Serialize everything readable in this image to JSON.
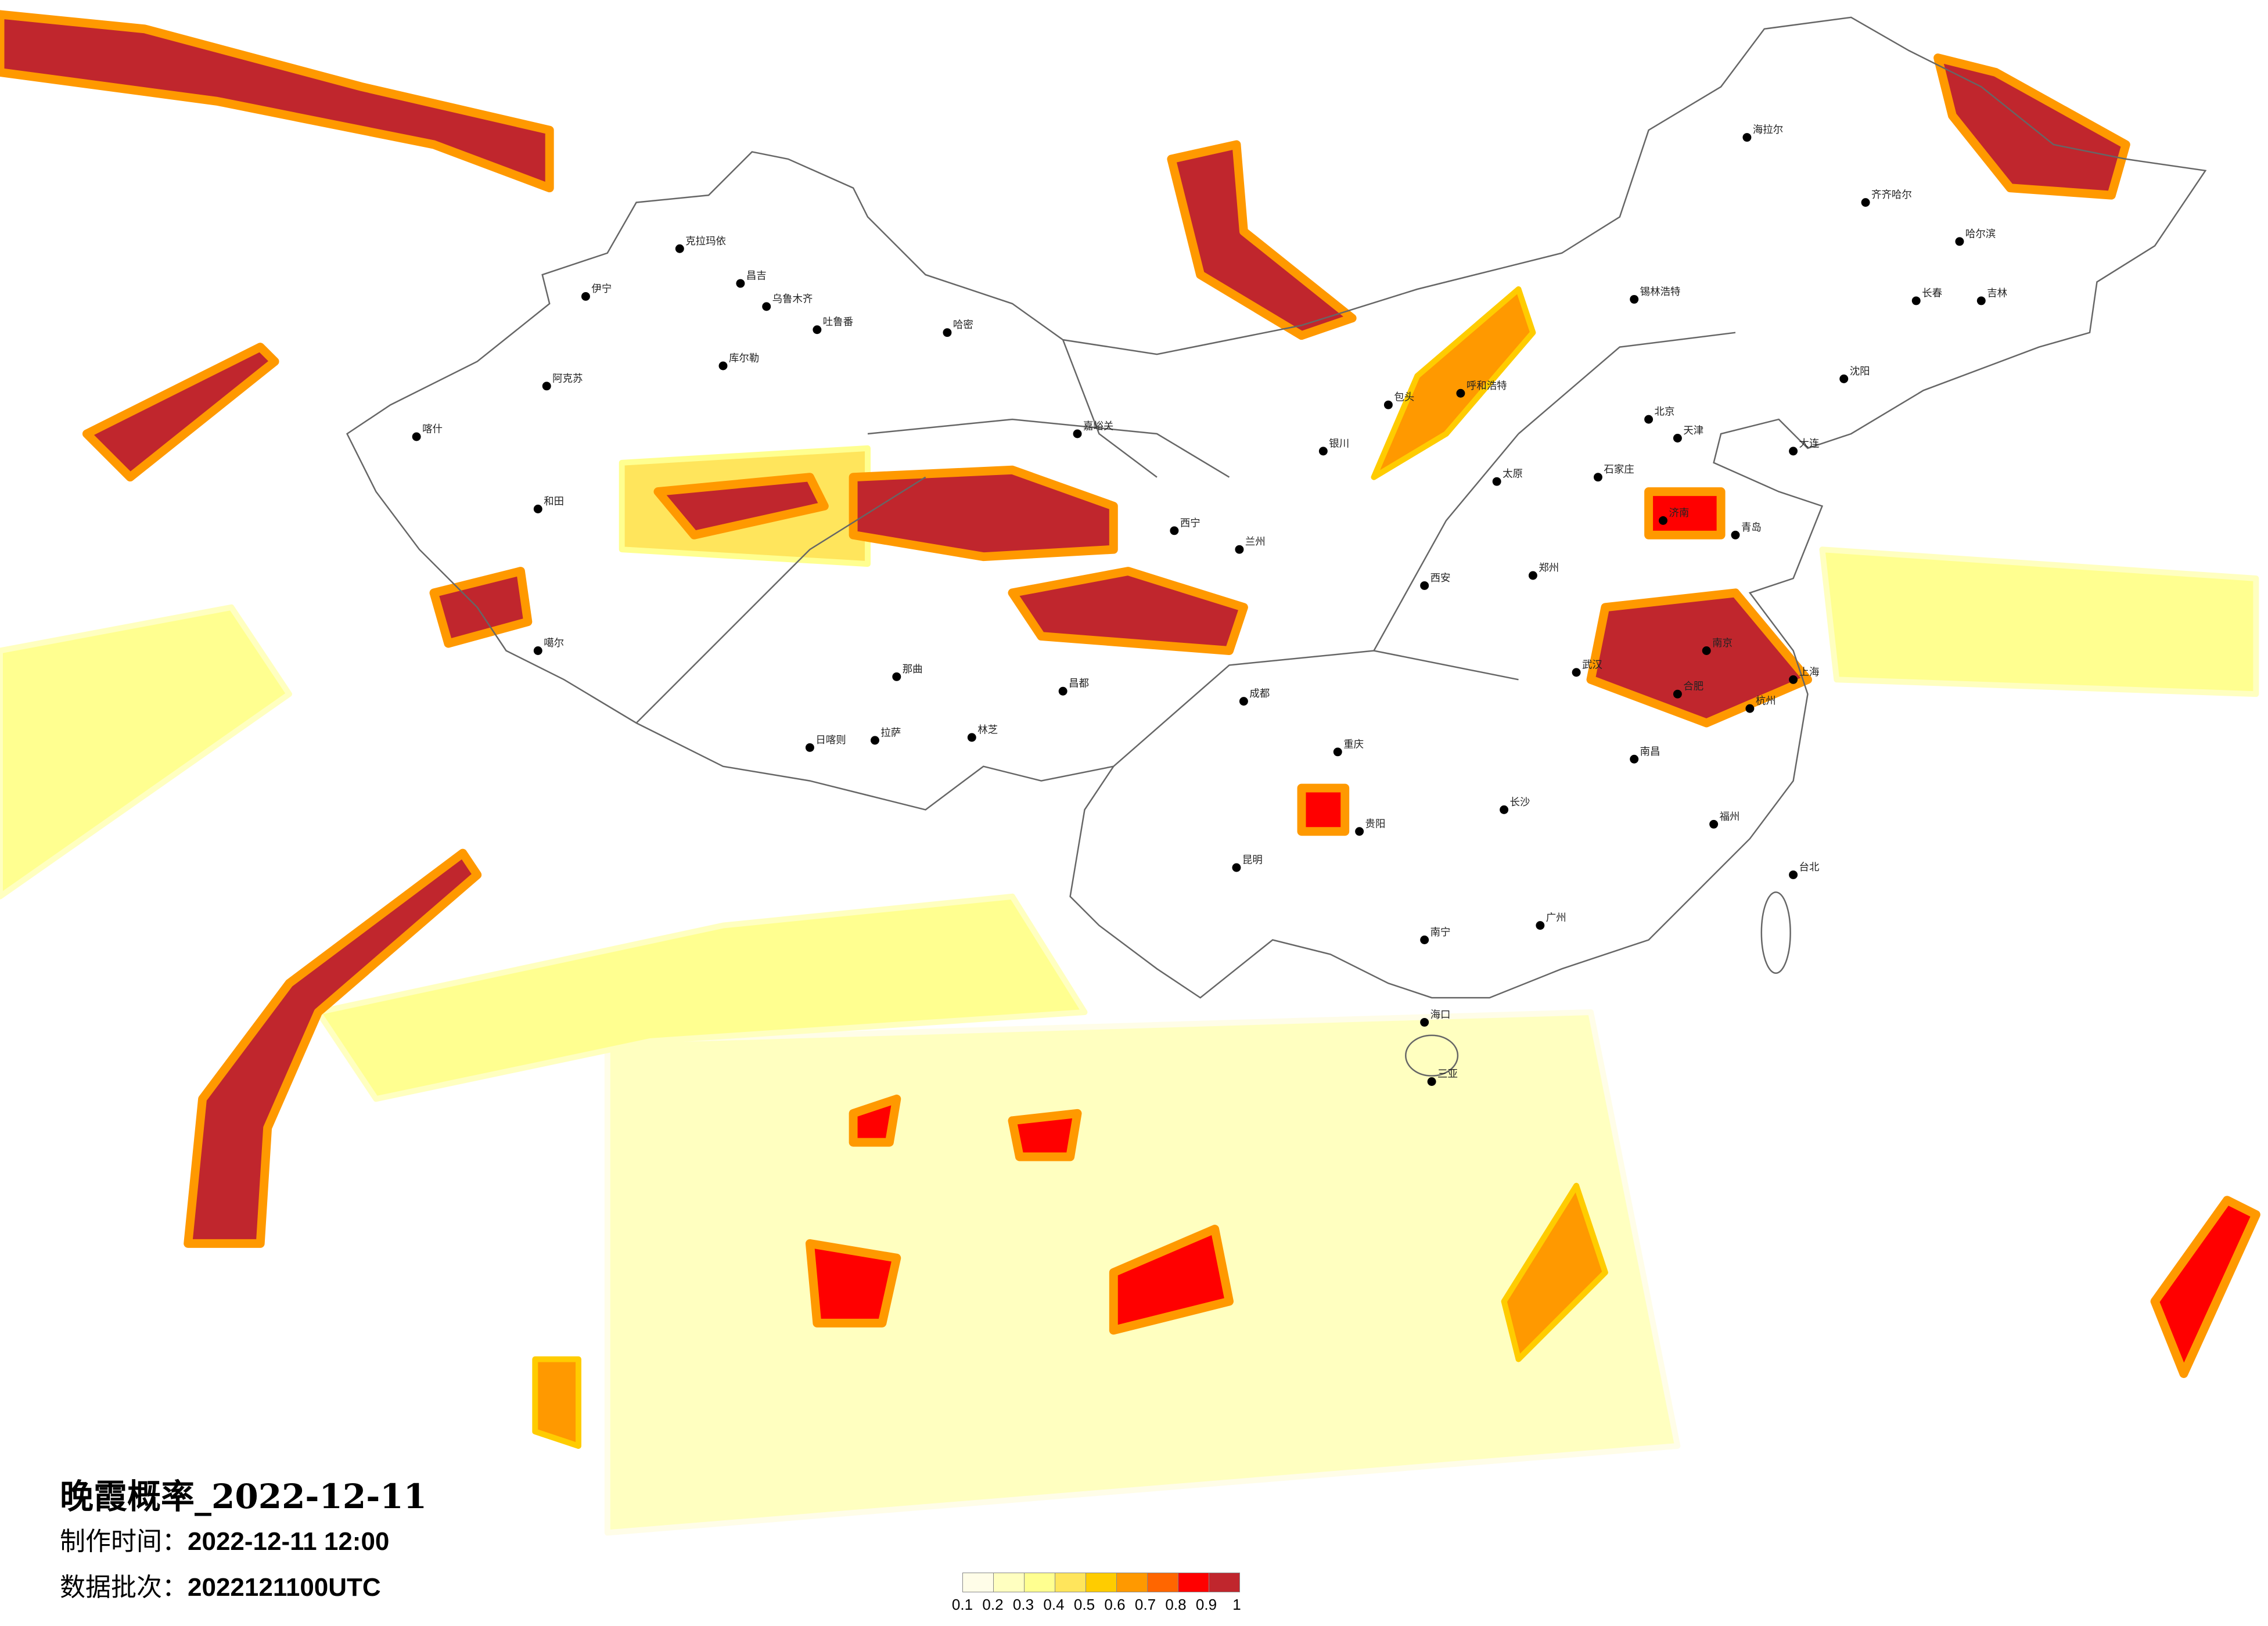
{
  "title": "晚霞概率_2022-12-11",
  "production_time_label": "制作时间：",
  "production_time": "2022-12-11 12:00",
  "data_batch_label": "数据批次：",
  "data_batch": "2022121100UTC",
  "legend": {
    "colors": [
      "#fffde8",
      "#ffffc0",
      "#ffff90",
      "#ffe55c",
      "#ffcc00",
      "#ff9900",
      "#ff6600",
      "#ff0000",
      "#c0262d"
    ],
    "ticks": [
      "0.1",
      "0.2",
      "0.3",
      "0.4",
      "0.5",
      "0.6",
      "0.7",
      "0.8",
      "0.9",
      "1"
    ]
  },
  "cities": [
    "伊宁",
    "克拉玛依",
    "昌吉",
    "乌鲁木齐",
    "吐鲁番",
    "哈密",
    "库尔勒",
    "阿克苏",
    "喀什",
    "和田",
    "噶尔",
    "日喀则",
    "拉萨",
    "林芝",
    "那曲",
    "昌都",
    "嘉峪关",
    "西宁",
    "兰州",
    "银川",
    "海拉尔",
    "齐齐哈尔",
    "哈尔滨",
    "长春",
    "吉林",
    "沈阳",
    "呼和浩特",
    "包头",
    "北京",
    "天津",
    "石家庄",
    "太原",
    "济南",
    "郑州",
    "西安",
    "成都",
    "重庆",
    "贵阳",
    "昆明",
    "南宁",
    "广州",
    "长沙",
    "武汉",
    "南昌",
    "杭州",
    "上海",
    "南京",
    "合肥",
    "福州",
    "台北",
    "海口",
    "三亚",
    "锡林浩特",
    "大连",
    "青岛"
  ]
}
